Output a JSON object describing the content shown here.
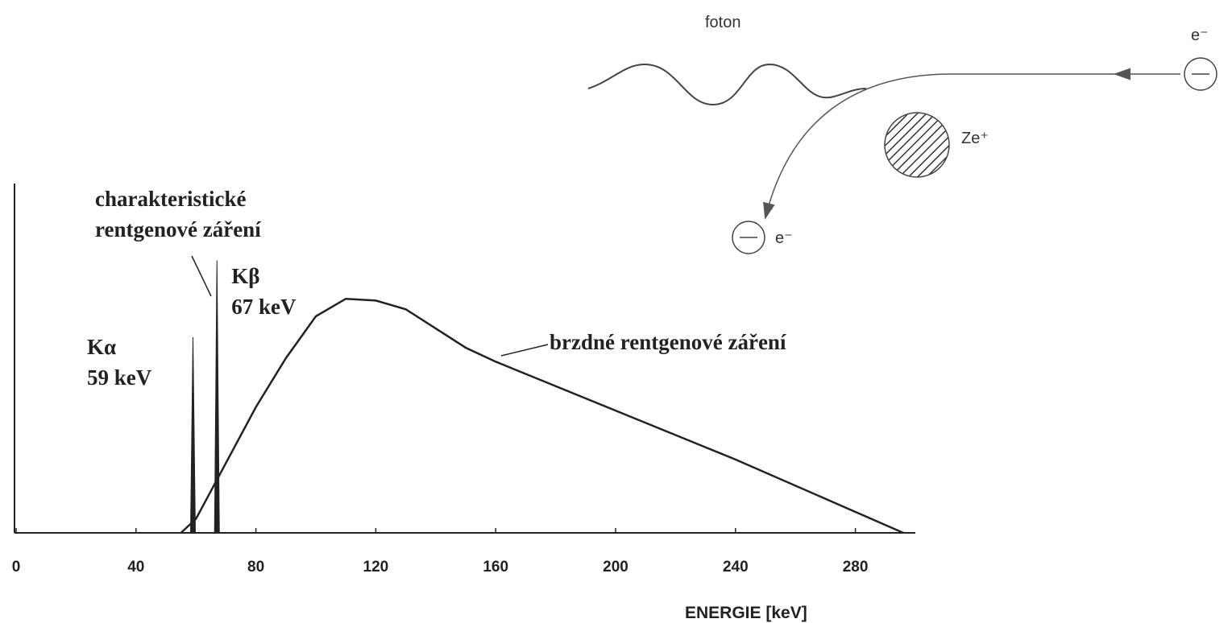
{
  "chart_data": {
    "type": "line",
    "x_label": "ENERGIE [keV]",
    "series": [
      {
        "name": "brzdné rentgenové záření",
        "color": "#222",
        "x": [
          55,
          60,
          70,
          80,
          90,
          100,
          110,
          120,
          130,
          150,
          160,
          200,
          240,
          280,
          296
        ],
        "values": [
          0,
          4,
          20,
          36,
          50,
          62,
          67,
          66.5,
          64,
          53,
          49,
          35,
          21,
          6,
          0
        ]
      }
    ],
    "peaks": [
      {
        "name": "Kα",
        "energy": 59,
        "label": "59 keV",
        "height": 56
      },
      {
        "name": "Kβ",
        "energy": 67,
        "label": "67 keV",
        "height": 78
      }
    ],
    "annotations": [
      "charakteristické",
      "rentgenové záření"
    ],
    "xlim": [
      0,
      300
    ],
    "ylim": [
      0,
      100
    ],
    "xticks": [
      0,
      40,
      80,
      120,
      160,
      200,
      240,
      280
    ]
  },
  "diagram": {
    "photon": "foton",
    "incoming": "e⁻",
    "nucleus": "Ze⁺",
    "outgoing": "e⁻"
  }
}
